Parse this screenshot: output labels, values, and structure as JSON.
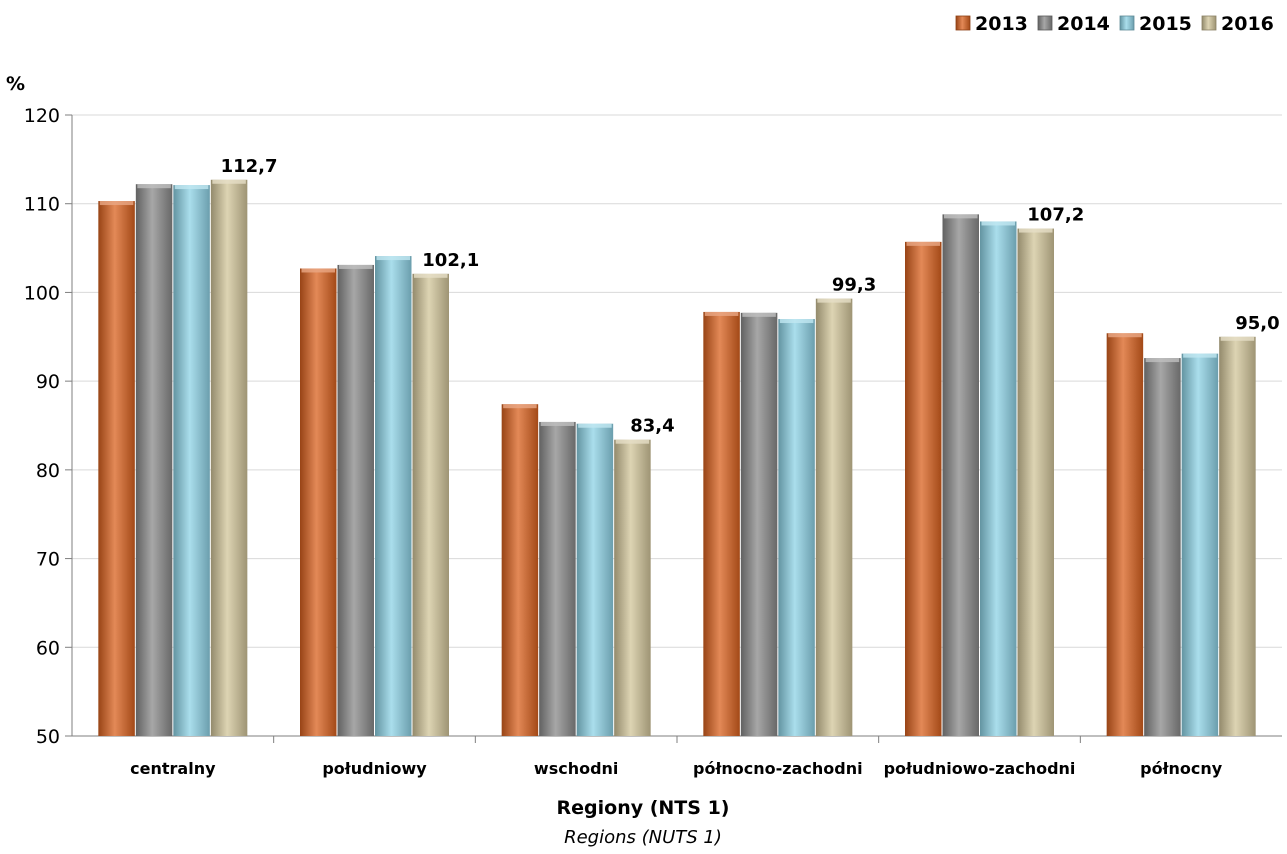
{
  "chart_data": {
    "type": "bar",
    "title": "",
    "ylabel": "%",
    "xlabel": "Regiony (NTS 1)",
    "xlabel_secondary": "Regions (NUTS 1)",
    "ylim": [
      50,
      120
    ],
    "yticks": [
      "50",
      "60",
      "70",
      "80",
      "90",
      "100",
      "110",
      "120"
    ],
    "grid": true,
    "legend_position": "top-right",
    "categories": [
      "centralny",
      "południowy",
      "wschodni",
      "północno-zachodni",
      "południowo-zachodni",
      "północny"
    ],
    "series": [
      {
        "name": "2013",
        "color": "#d9611f",
        "values": [
          110.3,
          102.7,
          87.4,
          97.8,
          105.7,
          95.4
        ]
      },
      {
        "name": "2014",
        "color": "#8a8a8a",
        "values": [
          112.2,
          103.1,
          85.4,
          97.7,
          108.8,
          92.6
        ]
      },
      {
        "name": "2015",
        "color": "#8ed3e6",
        "values": [
          112.1,
          104.1,
          85.2,
          97.0,
          108.0,
          93.1
        ]
      },
      {
        "name": "2016",
        "color": "#d2c59a",
        "values": [
          112.7,
          102.1,
          83.4,
          99.3,
          107.2,
          95.0
        ]
      }
    ],
    "data_labels": [
      {
        "category_index": 0,
        "series_index": 3,
        "text": "112,7"
      },
      {
        "category_index": 1,
        "series_index": 3,
        "text": "102,1"
      },
      {
        "category_index": 2,
        "series_index": 3,
        "text": "83,4"
      },
      {
        "category_index": 3,
        "series_index": 3,
        "text": "99,3"
      },
      {
        "category_index": 4,
        "series_index": 3,
        "text": "107,2"
      },
      {
        "category_index": 5,
        "series_index": 3,
        "text": "95,0"
      }
    ]
  }
}
